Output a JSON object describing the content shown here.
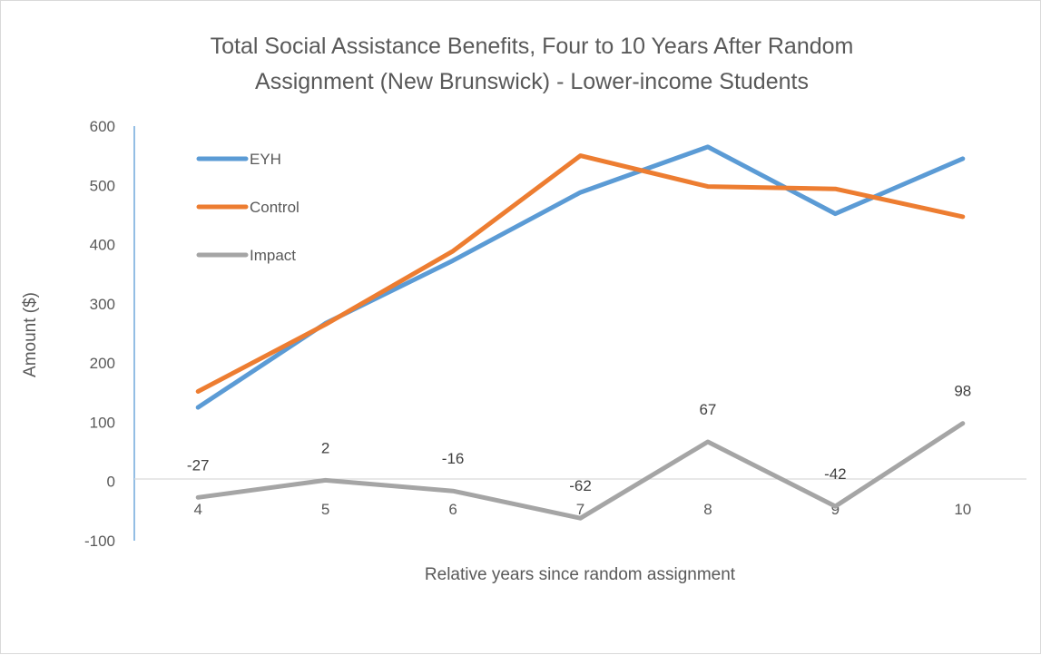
{
  "chart_data": {
    "type": "line",
    "title_lines": [
      "Total Social Assistance Benefits, Four to 10 Years After Random",
      "Assignment (New Brunswick) - Lower-income Students"
    ],
    "xlabel": "Relative years since random assignment",
    "ylabel": "Amount ($)",
    "categories": [
      "4",
      "5",
      "6",
      "7",
      "8",
      "9",
      "10"
    ],
    "yticks": [
      "600",
      "500",
      "400",
      "300",
      "200",
      "100",
      "0",
      "-100"
    ],
    "ylim": [
      -100,
      600
    ],
    "grid": false,
    "legend_position": "top-left",
    "series": [
      {
        "name": "EYH",
        "color": "#5b9bd5",
        "values": [
          125,
          267,
          373,
          488,
          565,
          452,
          545
        ]
      },
      {
        "name": "Control",
        "color": "#ed7d31",
        "values": [
          152,
          265,
          389,
          550,
          498,
          494,
          447
        ]
      },
      {
        "name": "Impact",
        "color": "#a5a5a5",
        "values": [
          -27,
          2,
          -16,
          -62,
          67,
          -42,
          98
        ],
        "data_labels": [
          "-27",
          "2",
          "-16",
          "-62",
          "67",
          "-42",
          "98"
        ]
      }
    ]
  }
}
